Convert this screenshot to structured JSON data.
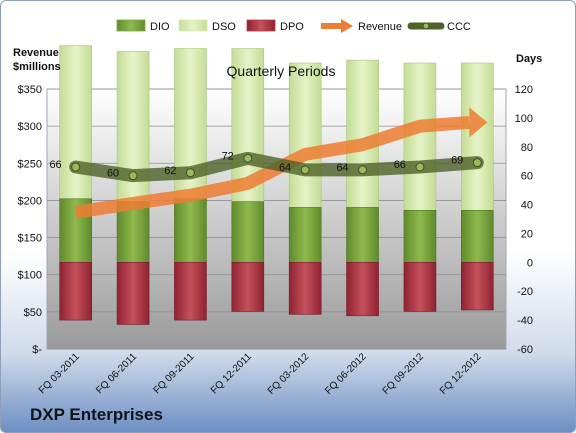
{
  "chart_data": {
    "type": "bar",
    "title": "Quarterly Periods",
    "company": "DXP Enterprises",
    "y_left_label": [
      "Revenue",
      "$millions"
    ],
    "y_right_label": "Days",
    "categories": [
      "FQ 03-2011",
      "FQ 06-2011",
      "FQ 09-2011",
      "FQ 12-2011",
      "FQ 03-2012",
      "FQ 06-2012",
      "FQ 09-2012",
      "FQ 12-2012"
    ],
    "y_left_ticks": [
      "$-",
      "$50",
      "$100",
      "$150",
      "$200",
      "$250",
      "$300",
      "$350"
    ],
    "y_left_range": [
      0,
      350
    ],
    "y_right_ticks": [
      "-60",
      "-40",
      "-20",
      "0",
      "20",
      "40",
      "60",
      "80",
      "100",
      "120"
    ],
    "y_right_range": [
      -60,
      120
    ],
    "legend": [
      {
        "label": "DIO",
        "type": "bar",
        "color": "#7ea640"
      },
      {
        "label": "DSO",
        "type": "bar",
        "color": "#d8ebb0"
      },
      {
        "label": "DPO",
        "type": "bar",
        "color": "#b23a48"
      },
      {
        "label": "Revenue",
        "type": "arrow",
        "color": "#ed7d31"
      },
      {
        "label": "CCC",
        "type": "line",
        "color": "#4f6228"
      }
    ],
    "series": [
      {
        "name": "DIO",
        "axis": "days",
        "values": [
          44,
          42,
          44,
          42,
          38,
          38,
          36,
          36
        ]
      },
      {
        "name": "DSO",
        "axis": "days",
        "values": [
          106,
          104,
          104,
          106,
          100,
          102,
          102,
          102
        ]
      },
      {
        "name": "DPO",
        "axis": "days",
        "values": [
          -40,
          -43,
          -40,
          -34,
          -36,
          -37,
          -34,
          -33
        ]
      },
      {
        "name": "Revenue",
        "axis": "revenue",
        "values": [
          184,
          196,
          207,
          223,
          262,
          275,
          300,
          305
        ]
      },
      {
        "name": "CCC",
        "axis": "days",
        "values": [
          66,
          60,
          62,
          72,
          64,
          64,
          66,
          69
        ]
      }
    ],
    "ccc_labels": [
      "66",
      "60",
      "62",
      "72",
      "64",
      "64",
      "66",
      "69"
    ]
  }
}
